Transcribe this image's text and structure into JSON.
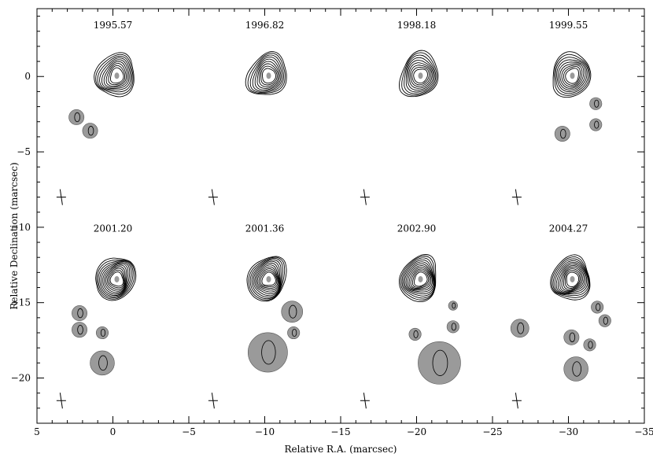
{
  "chart_data": {
    "type": "contour-map",
    "title": "",
    "xlabel": "Relative R.A. (marcsec)",
    "ylabel": "Relative Declination (marcsec)",
    "xlim": [
      5,
      -35
    ],
    "ylim": [
      -23,
      4.5
    ],
    "x_ticks": [
      5,
      0,
      -5,
      -10,
      -15,
      -20,
      -25,
      -30,
      -35
    ],
    "x_tick_labels": [
      "5",
      "0",
      "−5",
      "−10",
      "−15",
      "−20",
      "−25",
      "−30",
      "−35"
    ],
    "y_ticks": [
      0,
      -5,
      -10,
      -15,
      -20
    ],
    "y_tick_labels": [
      "0",
      "−5",
      "−10",
      "−15",
      "−20"
    ],
    "epochs": [
      {
        "label": "1995.57",
        "x": 0,
        "y": 0,
        "label_x": 0,
        "label_y": 3.2,
        "beam": [
          3.4,
          -8.0
        ],
        "components": [
          {
            "x": 2.4,
            "y": -2.7,
            "r": 0.5
          },
          {
            "x": 1.5,
            "y": -3.6,
            "r": 0.5
          }
        ]
      },
      {
        "label": "1996.82",
        "x": -10,
        "y": 0,
        "label_x": -10,
        "label_y": 3.2,
        "beam": [
          -6.6,
          -8.0
        ],
        "components": []
      },
      {
        "label": "1998.18",
        "x": -20,
        "y": 0,
        "label_x": -20,
        "label_y": 3.2,
        "beam": [
          -16.6,
          -8.0
        ],
        "components": []
      },
      {
        "label": "1999.55",
        "x": -30,
        "y": 0,
        "label_x": -30,
        "label_y": 3.2,
        "beam": [
          -26.6,
          -8.0
        ],
        "components": [
          {
            "x": -31.8,
            "y": -1.8,
            "r": 0.4
          },
          {
            "x": -31.8,
            "y": -3.2,
            "r": 0.4
          },
          {
            "x": -29.6,
            "y": -3.8,
            "r": 0.5
          }
        ]
      },
      {
        "label": "2001.20",
        "x": 0,
        "y": -13.5,
        "label_x": 0,
        "label_y": -10.3,
        "beam": [
          3.4,
          -21.5
        ],
        "components": [
          {
            "x": 2.2,
            "y": -15.7,
            "r": 0.5
          },
          {
            "x": 2.2,
            "y": -16.8,
            "r": 0.5
          },
          {
            "x": 0.7,
            "y": -17.0,
            "r": 0.4
          },
          {
            "x": 0.7,
            "y": -19.0,
            "r": 0.8
          }
        ]
      },
      {
        "label": "2001.36",
        "x": -10,
        "y": -13.5,
        "label_x": -10,
        "label_y": -10.3,
        "beam": [
          -6.6,
          -21.5
        ],
        "components": [
          {
            "x": -11.8,
            "y": -15.6,
            "r": 0.7
          },
          {
            "x": -11.9,
            "y": -17.0,
            "r": 0.4
          },
          {
            "x": -10.2,
            "y": -18.3,
            "r": 1.3
          }
        ]
      },
      {
        "label": "2002.90",
        "x": -20,
        "y": -13.5,
        "label_x": -20,
        "label_y": -10.3,
        "beam": [
          -16.6,
          -21.5
        ],
        "components": [
          {
            "x": -22.4,
            "y": -15.2,
            "r": 0.3
          },
          {
            "x": -22.4,
            "y": -16.6,
            "r": 0.4
          },
          {
            "x": -19.9,
            "y": -17.1,
            "r": 0.4
          },
          {
            "x": -21.5,
            "y": -19.0,
            "r": 1.4
          }
        ]
      },
      {
        "label": "2004.27",
        "x": -30,
        "y": -13.5,
        "label_x": -30,
        "label_y": -10.3,
        "beam": [
          -26.6,
          -21.5
        ],
        "components": [
          {
            "x": -26.8,
            "y": -16.7,
            "r": 0.6
          },
          {
            "x": -31.9,
            "y": -15.3,
            "r": 0.4
          },
          {
            "x": -32.4,
            "y": -16.2,
            "r": 0.4
          },
          {
            "x": -30.2,
            "y": -17.3,
            "r": 0.5
          },
          {
            "x": -31.4,
            "y": -17.8,
            "r": 0.4
          },
          {
            "x": -30.5,
            "y": -19.4,
            "r": 0.8
          }
        ]
      }
    ]
  }
}
